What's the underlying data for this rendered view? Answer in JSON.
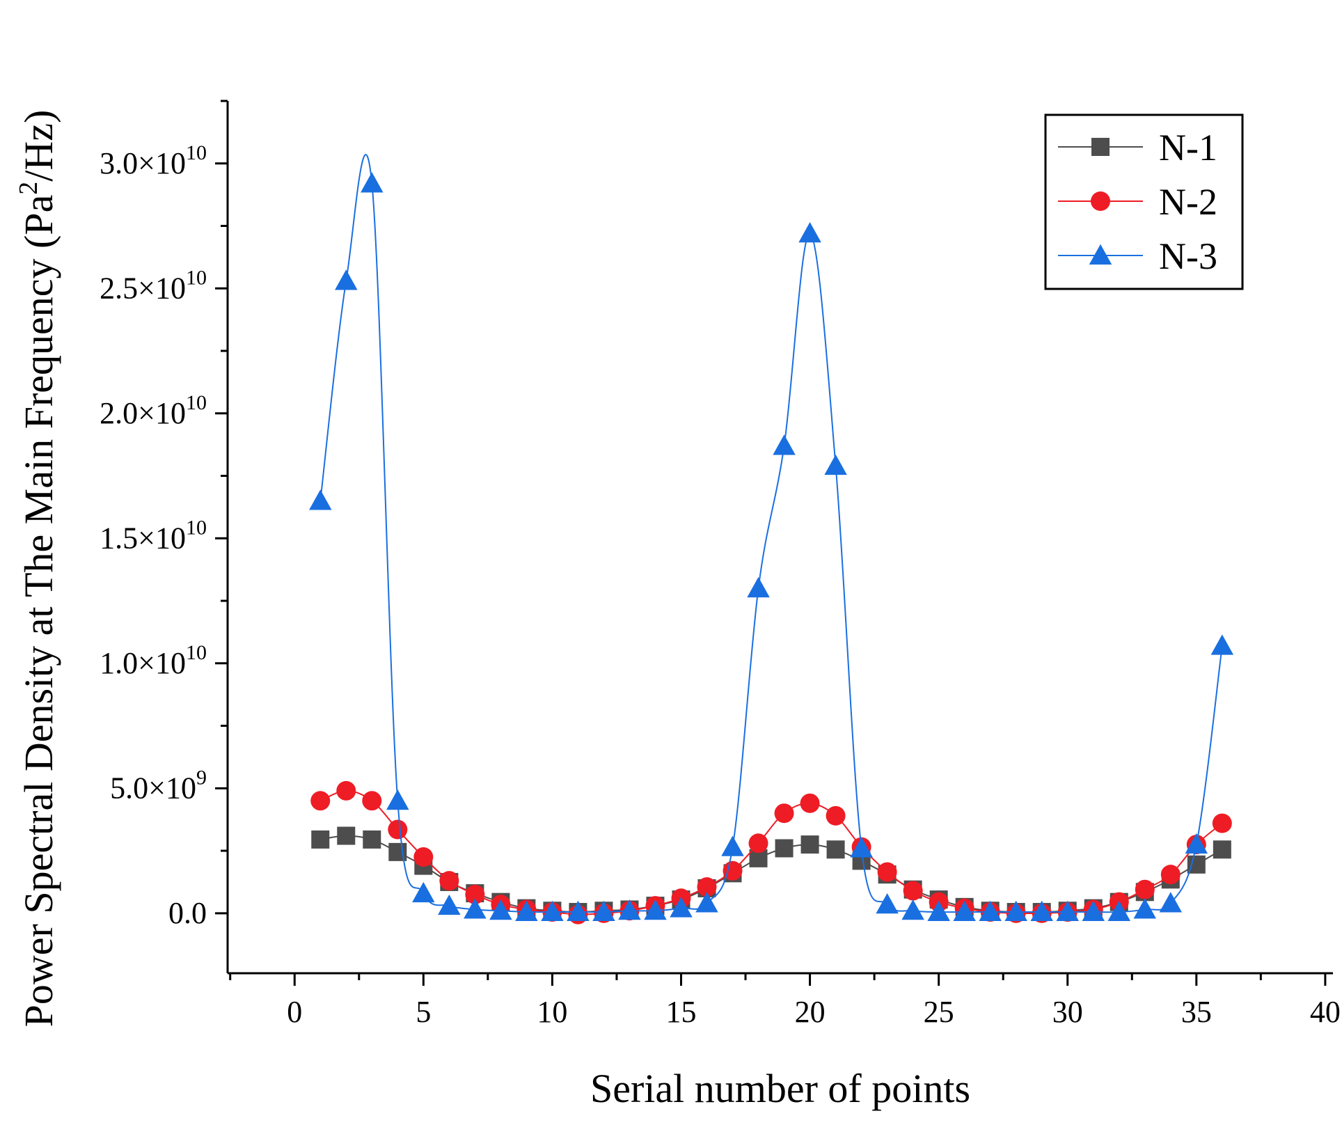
{
  "chart_data": {
    "type": "line",
    "title": "",
    "xlabel": "Serial number of points",
    "ylabel": {
      "main": "Power Spectral Density at The Main Frequency (Pa",
      "sup": "2",
      "tail": "/Hz)"
    },
    "xlim": [
      -2.6,
      40.3
    ],
    "ylim": [
      -2400000000.0,
      32500000000.0
    ],
    "x_ticks": [
      0,
      5,
      10,
      15,
      20,
      25,
      30,
      35,
      40
    ],
    "x_tick_labels": [
      "0",
      "5",
      "10",
      "15",
      "20",
      "25",
      "30",
      "35",
      "40"
    ],
    "y_ticks": [
      {
        "value": 0,
        "base": "0.0",
        "exp": ""
      },
      {
        "value": 5000000000.0,
        "base": "5.0×10",
        "exp": "9"
      },
      {
        "value": 10000000000.0,
        "base": "1.0×10",
        "exp": "10"
      },
      {
        "value": 15000000000.0,
        "base": "1.5×10",
        "exp": "10"
      },
      {
        "value": 20000000000.0,
        "base": "2.0×10",
        "exp": "10"
      },
      {
        "value": 25000000000.0,
        "base": "2.5×10",
        "exp": "10"
      },
      {
        "value": 30000000000.0,
        "base": "3.0×10",
        "exp": "10"
      }
    ],
    "grid": false,
    "legend": "top-right",
    "x": [
      1,
      2,
      3,
      4,
      5,
      6,
      7,
      8,
      9,
      10,
      11,
      12,
      13,
      14,
      15,
      16,
      17,
      18,
      19,
      20,
      21,
      22,
      23,
      24,
      25,
      26,
      27,
      28,
      29,
      30,
      31,
      32,
      33,
      34,
      35,
      36
    ],
    "series": [
      {
        "name": "N-1",
        "color": "#4d4d4d",
        "marker": "square",
        "values": [
          2950000000.0,
          3100000000.0,
          2950000000.0,
          2450000000.0,
          1900000000.0,
          1250000000.0,
          800000000.0,
          450000000.0,
          200000000.0,
          100000000.0,
          50000000.0,
          100000000.0,
          150000000.0,
          300000000.0,
          550000000.0,
          1000000000.0,
          1600000000.0,
          2200000000.0,
          2600000000.0,
          2750000000.0,
          2550000000.0,
          2100000000.0,
          1550000000.0,
          950000000.0,
          550000000.0,
          250000000.0,
          100000000.0,
          50000000.0,
          50000000.0,
          100000000.0,
          200000000.0,
          450000000.0,
          850000000.0,
          1350000000.0,
          1950000000.0,
          2550000000.0
        ]
      },
      {
        "name": "N-2",
        "color": "#ee1c25",
        "marker": "circle",
        "values": [
          4500000000.0,
          4900000000.0,
          4500000000.0,
          3350000000.0,
          2250000000.0,
          1300000000.0,
          750000000.0,
          350000000.0,
          150000000.0,
          50000000.0,
          -50000000.0,
          0.0,
          100000000.0,
          300000000.0,
          600000000.0,
          1050000000.0,
          1700000000.0,
          2800000000.0,
          4000000000.0,
          4400000000.0,
          3900000000.0,
          2650000000.0,
          1650000000.0,
          900000000.0,
          450000000.0,
          200000000.0,
          50000000.0,
          0.0,
          0.0,
          50000000.0,
          150000000.0,
          450000000.0,
          950000000.0,
          1550000000.0,
          2750000000.0,
          3600000000.0
        ]
      },
      {
        "name": "N-3",
        "color": "#1a6fe0",
        "marker": "triangle",
        "values": [
          16500000000.0,
          25300000000.0,
          29200000000.0,
          4500000000.0,
          800000000.0,
          300000000.0,
          150000000.0,
          100000000.0,
          50000000.0,
          50000000.0,
          50000000.0,
          50000000.0,
          100000000.0,
          100000000.0,
          200000000.0,
          400000000.0,
          2650000000.0,
          13000000000.0,
          18700000000.0,
          27200000000.0,
          17900000000.0,
          2600000000.0,
          350000000.0,
          100000000.0,
          50000000.0,
          50000000.0,
          50000000.0,
          50000000.0,
          50000000.0,
          50000000.0,
          50000000.0,
          50000000.0,
          150000000.0,
          400000000.0,
          2750000000.0,
          10700000000.0
        ]
      }
    ]
  }
}
